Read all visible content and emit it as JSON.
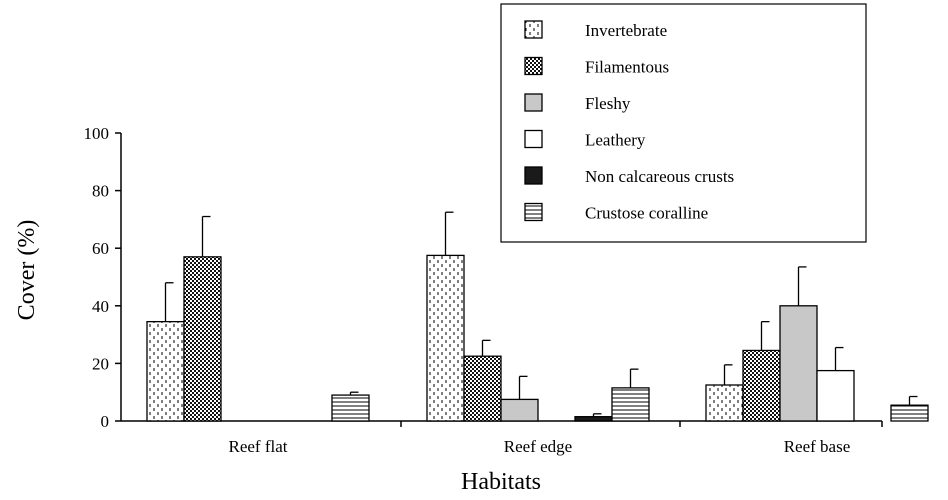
{
  "chart_data": {
    "type": "bar",
    "xlabel": "Habitats",
    "ylabel": "Cover (%)",
    "ylim": [
      0,
      100
    ],
    "yticks": [
      "0",
      "20",
      "40",
      "60",
      "80",
      "100"
    ],
    "categories": [
      "Reef flat",
      "Reef edge",
      "Reef base"
    ],
    "series": [
      {
        "name": "Invertebrate",
        "pattern": "dotted",
        "values": [
          34.5,
          57.5,
          12.5
        ],
        "errors": [
          13.5,
          15,
          7
        ]
      },
      {
        "name": "Filamentous",
        "pattern": "checker",
        "values": [
          57,
          22.5,
          24.5
        ],
        "errors": [
          14,
          5.5,
          10
        ]
      },
      {
        "name": "Fleshy",
        "pattern": "gray",
        "values": [
          0,
          7.5,
          40
        ],
        "errors": [
          0,
          8,
          13.5
        ]
      },
      {
        "name": "Leathery",
        "pattern": "white",
        "values": [
          0,
          0,
          17.5
        ],
        "errors": [
          0,
          0,
          8
        ]
      },
      {
        "name": "Non calcareous crusts",
        "pattern": "black",
        "values": [
          0,
          1.5,
          0
        ],
        "errors": [
          0,
          1,
          0
        ]
      },
      {
        "name": "Crustose coralline",
        "pattern": "hlines",
        "values": [
          9,
          11.5,
          5.5
        ],
        "errors": [
          1,
          6.5,
          3
        ]
      }
    ],
    "legend_position": "top-right",
    "grid": false,
    "colors": {
      "fleshy": "#c8c8c8",
      "black": "#1a1a1a",
      "axis": "#000000"
    }
  }
}
